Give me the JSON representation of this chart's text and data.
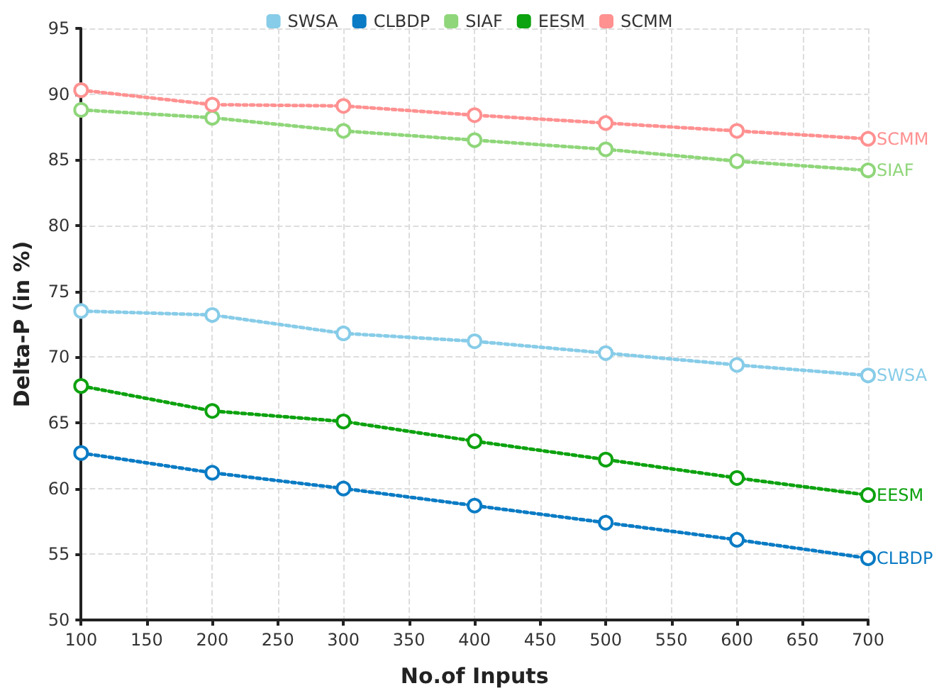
{
  "chart_data": {
    "type": "line",
    "xlabel": "No.of Inputs",
    "ylabel": "Delta-P (in %)",
    "x": [
      100,
      200,
      300,
      400,
      500,
      600,
      700
    ],
    "series": [
      {
        "name": "SWSA",
        "color": "#87cce8",
        "values": [
          73.5,
          73.2,
          71.8,
          71.2,
          70.3,
          69.4,
          68.6
        ]
      },
      {
        "name": "CLBDP",
        "color": "#0a7bc4",
        "values": [
          62.7,
          61.2,
          60.0,
          58.7,
          57.4,
          56.1,
          54.7
        ]
      },
      {
        "name": "SIAF",
        "color": "#8fd67a",
        "values": [
          88.8,
          88.2,
          87.2,
          86.5,
          85.8,
          84.9,
          84.2
        ]
      },
      {
        "name": "EESM",
        "color": "#0da20f",
        "values": [
          67.8,
          65.9,
          65.1,
          63.6,
          62.2,
          60.8,
          59.5
        ]
      },
      {
        "name": "SCMM",
        "color": "#ff9191",
        "values": [
          90.3,
          89.2,
          89.1,
          88.4,
          87.8,
          87.2,
          86.6
        ]
      }
    ],
    "xlim": [
      100,
      700
    ],
    "xticks": [
      100,
      150,
      200,
      250,
      300,
      350,
      400,
      450,
      500,
      550,
      600,
      650,
      700
    ],
    "ylim": [
      50,
      95
    ],
    "yticks": [
      50,
      55,
      60,
      65,
      70,
      75,
      80,
      85,
      90,
      95
    ],
    "grid": true,
    "legend": "top",
    "marker": "circle",
    "line_style": "dotted"
  }
}
